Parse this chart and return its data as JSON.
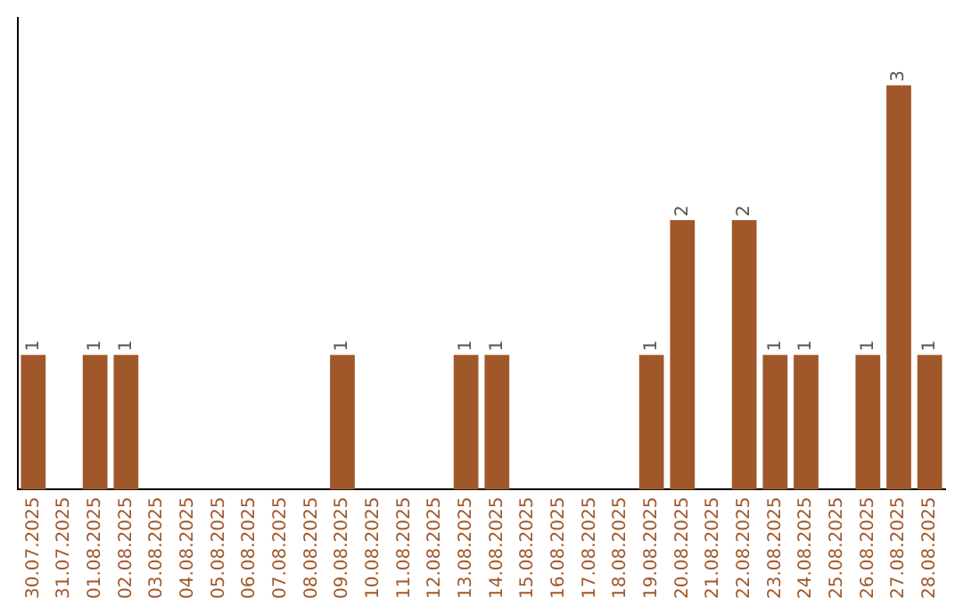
{
  "chart_data": {
    "type": "bar",
    "color": "#a0582a",
    "categories": [
      "30.07.2025",
      "31.07.2025",
      "01.08.2025",
      "02.08.2025",
      "03.08.2025",
      "04.08.2025",
      "05.08.2025",
      "06.08.2025",
      "07.08.2025",
      "08.08.2025",
      "09.08.2025",
      "10.08.2025",
      "11.08.2025",
      "12.08.2025",
      "13.08.2025",
      "14.08.2025",
      "15.08.2025",
      "16.08.2025",
      "17.08.2025",
      "18.08.2025",
      "19.08.2025",
      "20.08.2025",
      "21.08.2025",
      "22.08.2025",
      "23.08.2025",
      "24.08.2025",
      "25.08.2025",
      "26.08.2025",
      "27.08.2025",
      "28.08.2025"
    ],
    "values": [
      1,
      0,
      1,
      1,
      0,
      0,
      0,
      0,
      0,
      0,
      1,
      0,
      0,
      0,
      1,
      1,
      0,
      0,
      0,
      0,
      1,
      2,
      0,
      2,
      1,
      1,
      0,
      1,
      3,
      1
    ],
    "value_labels": [
      "1",
      null,
      "1",
      "1",
      null,
      null,
      null,
      null,
      null,
      null,
      "1",
      null,
      null,
      null,
      "1",
      "1",
      null,
      null,
      null,
      null,
      "1",
      "2",
      null,
      "2",
      "1",
      "1",
      null,
      "1",
      "3",
      "1"
    ],
    "tick_labels": "x",
    "grid": false,
    "legend": false
  }
}
